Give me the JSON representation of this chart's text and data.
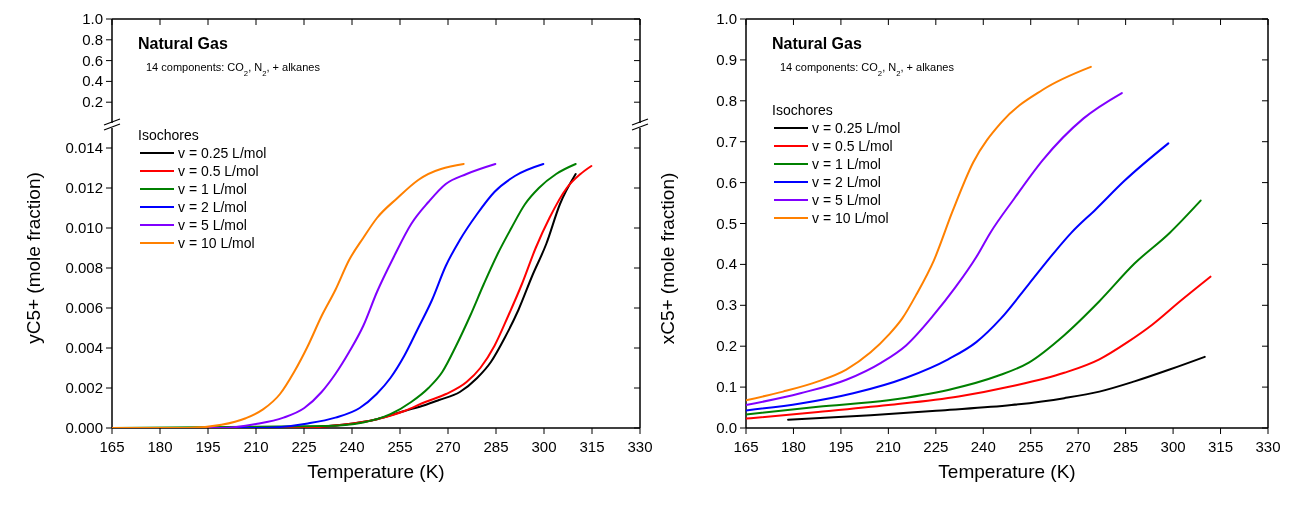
{
  "chart_data": [
    {
      "type": "line",
      "title": "Natural Gas",
      "annotations": [
        "14 components: CO$_{2}$, N$_{2}$, + alkanes"
      ],
      "xlim": [
        165,
        330
      ],
      "xticks": [
        165,
        180,
        195,
        210,
        225,
        240,
        255,
        270,
        285,
        300,
        315,
        330
      ],
      "ylim": [
        0,
        1
      ],
      "yticks": [
        0.2,
        0.4,
        0.6,
        {
          "value": 0.8,
          "label": "0.8"
        },
        {
          "value": 1,
          "label": "1.0"
        }
      ],
      "tick_labels": "y",
      "grid": false,
      "legend": false
    },
    {
      "type": "line",
      "xlabel": "Temperature (K)",
      "ylabel": "yC5+ (mole fraction)",
      "legend_title": "Isochores",
      "legend": "top left",
      "grid": false,
      "xlim": [
        165,
        330
      ],
      "xticks": [
        165,
        180,
        195,
        210,
        225,
        240,
        255,
        270,
        285,
        300,
        315,
        330
      ],
      "ylim": [
        0,
        0.015
      ],
      "yticks": [
        {
          "value": 0,
          "label": "0.000"
        },
        {
          "value": 0.002,
          "label": "0.002"
        },
        {
          "value": 0.004,
          "label": "0.004"
        },
        {
          "value": 0.006,
          "label": "0.006"
        },
        {
          "value": 0.008,
          "label": "0.008"
        },
        {
          "value": 0.01,
          "label": "0.010"
        },
        {
          "value": 0.012,
          "label": "0.012"
        },
        {
          "value": 0.014,
          "label": "0.014"
        }
      ],
      "series": [
        {
          "name": "v = 0.25 L/mol",
          "color": "#000000",
          "x": [
            165,
            220.8,
            237,
            247.8,
            256.4,
            262.9,
            267.2,
            273.7,
            279.1,
            283.4,
            287.7,
            292,
            296.3,
            300.7,
            305,
            309.9
          ],
          "values": [
            0,
            0,
            0.00016,
            0.00044,
            0.00085,
            0.00115,
            0.0014,
            0.0018,
            0.0025,
            0.0033,
            0.0045,
            0.0059,
            0.0076,
            0.0092,
            0.0112,
            0.0127
          ]
        },
        {
          "name": "v = 0.5 L/mol",
          "color": "#ff0000",
          "x": [
            165,
            220.8,
            237,
            247.8,
            256.4,
            262.9,
            269.4,
            275.8,
            280.1,
            284.5,
            288.8,
            293.1,
            297.4,
            301.7,
            307.1,
            311.4,
            314.8
          ],
          "values": [
            0,
            0,
            0.00016,
            0.00044,
            0.00085,
            0.0013,
            0.0017,
            0.0023,
            0.003,
            0.0041,
            0.0056,
            0.0072,
            0.009,
            0.0105,
            0.012,
            0.0127,
            0.0131
          ]
        },
        {
          "name": "v = 1 L/mol",
          "color": "#008000",
          "x": [
            165,
            231.6,
            243.5,
            252,
            258.5,
            263.9,
            268.2,
            272.5,
            276.9,
            281.2,
            285.5,
            289.8,
            294.1,
            298.4,
            303.8,
            309.9
          ],
          "values": [
            0,
            0.0001,
            0.00028,
            0.00069,
            0.0013,
            0.002,
            0.0028,
            0.0041,
            0.0056,
            0.0072,
            0.0087,
            0.01,
            0.0112,
            0.012,
            0.0127,
            0.0132
          ]
        },
        {
          "name": "v = 2 L/mol",
          "color": "#0000ff",
          "x": [
            165,
            210,
            226.2,
            234.8,
            242.4,
            247.7,
            252,
            256.3,
            260.7,
            265,
            269.3,
            273.7,
            279.1,
            284.5,
            290.9,
            299.8
          ],
          "values": [
            0,
            0,
            0.00023,
            0.00052,
            0.001,
            0.0017,
            0.0025,
            0.0036,
            0.005,
            0.0064,
            0.0081,
            0.0094,
            0.0107,
            0.0118,
            0.0126,
            0.0132
          ]
        },
        {
          "name": "v = 5 L/mol",
          "color": "#8000ff",
          "x": [
            165,
            199.2,
            210,
            218.6,
            225.1,
            230.5,
            234.8,
            239.1,
            243.5,
            247.8,
            253.2,
            258.5,
            263.9,
            269.3,
            275.8,
            284.8
          ],
          "values": [
            0,
            0,
            0.0002,
            0.00052,
            0.001,
            0.0018,
            0.0027,
            0.0038,
            0.0051,
            0.0068,
            0.0086,
            0.0102,
            0.0113,
            0.0122,
            0.0127,
            0.0132
          ]
        },
        {
          "name": "v = 10 L/mol",
          "color": "#ff8000",
          "x": [
            165,
            188.4,
            199.2,
            206.8,
            212.2,
            217.5,
            221.9,
            226.2,
            230.5,
            234.8,
            239.1,
            243.5,
            247.8,
            254.2,
            260.7,
            274.9
          ],
          "values": [
            0,
            0,
            0.00016,
            0.00049,
            0.00093,
            0.0017,
            0.0028,
            0.0041,
            0.0056,
            0.0069,
            0.0084,
            0.0095,
            0.0105,
            0.0115,
            0.0124,
            0.0132
          ]
        }
      ]
    },
    {
      "type": "line",
      "title": "Natural Gas",
      "annotations": [
        "14 components: CO$_{2}$, N$_{2}$, + alkanes"
      ],
      "xlabel": "Temperature (K)",
      "ylabel": "xC5+ (mole fraction)",
      "legend_title": "Isochores",
      "legend": "top left",
      "grid": false,
      "xlim": [
        165,
        330
      ],
      "xticks": [
        165,
        180,
        195,
        210,
        225,
        240,
        255,
        270,
        285,
        300,
        315,
        330
      ],
      "ylim": [
        0,
        1
      ],
      "yticks": [
        {
          "value": 0,
          "label": "0.0"
        },
        0.1,
        0.2,
        0.3,
        0.4,
        0.5,
        0.6,
        0.7,
        0.8,
        0.9,
        {
          "value": 1,
          "label": "1.0"
        }
      ],
      "series": [
        {
          "name": "v = 0.25 L/mol",
          "color": "#000000",
          "x": [
            178.3,
            204.4,
            226.7,
            248.9,
            265.6,
            276.7,
            287.8,
            298.9,
            310
          ],
          "values": [
            0.02,
            0.031,
            0.043,
            0.056,
            0.073,
            0.089,
            0.114,
            0.143,
            0.174
          ]
        },
        {
          "name": "v = 0.5 L/mol",
          "color": "#ff0000",
          "x": [
            165,
            187.8,
            210,
            232.2,
            248.9,
            265.6,
            276.7,
            285.6,
            293.3,
            302.2,
            311.8
          ],
          "values": [
            0.023,
            0.039,
            0.056,
            0.077,
            0.102,
            0.135,
            0.168,
            0.21,
            0.252,
            0.31,
            0.37
          ]
        },
        {
          "name": "v = 1 L/mol",
          "color": "#008000",
          "x": [
            165,
            187.8,
            210,
            228.9,
            244.4,
            254.4,
            265.6,
            276.7,
            287.8,
            298.9,
            308.7
          ],
          "values": [
            0.033,
            0.052,
            0.068,
            0.093,
            0.127,
            0.16,
            0.227,
            0.31,
            0.402,
            0.477,
            0.556
          ]
        },
        {
          "name": "v = 2 L/mol",
          "color": "#0000ff",
          "x": [
            165,
            182.2,
            198.9,
            215.6,
            228.9,
            237.8,
            245.6,
            254.4,
            262.2,
            267.8,
            275.6,
            284.7,
            298.5
          ],
          "values": [
            0.043,
            0.06,
            0.085,
            0.123,
            0.168,
            0.21,
            0.268,
            0.352,
            0.427,
            0.477,
            0.535,
            0.605,
            0.696
          ]
        },
        {
          "name": "v = 5 L/mol",
          "color": "#8000ff",
          "x": [
            165,
            182.2,
            196.7,
            207.8,
            215.6,
            224.4,
            231.1,
            237.8,
            242.2,
            249.7,
            258.8,
            271.7,
            283.8
          ],
          "values": [
            0.056,
            0.085,
            0.118,
            0.16,
            0.202,
            0.277,
            0.343,
            0.418,
            0.477,
            0.56,
            0.655,
            0.757,
            0.819
          ]
        },
        {
          "name": "v = 10 L/mol",
          "color": "#ff8000",
          "x": [
            165,
            176.7,
            187.8,
            196.7,
            204.4,
            210,
            214.4,
            218.9,
            224.4,
            230.3,
            236.8,
            245.8,
            258.8,
            274
          ],
          "values": [
            0.068,
            0.089,
            0.114,
            0.143,
            0.185,
            0.227,
            0.268,
            0.327,
            0.41,
            0.53,
            0.649,
            0.748,
            0.827,
            0.883
          ]
        }
      ]
    }
  ]
}
